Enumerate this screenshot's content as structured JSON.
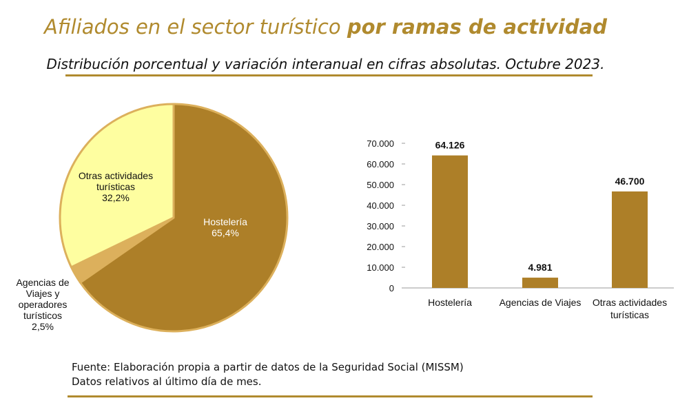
{
  "header": {
    "title_regular": "Afiliados en el sector turístico ",
    "title_bold": "por ramas de actividad",
    "subtitle": "Distribución porcentual y variación interanual en cifras absolutas. Octubre 2023."
  },
  "footer": {
    "source": "Fuente: Elaboración propia a partir de datos de la Seguridad Social (MISSM)",
    "note": "Datos relativos al último día de mes."
  },
  "colors": {
    "accent": "#b08a2e",
    "pie_hosteleria": "#ad7f28",
    "pie_agencias": "#dcb05c",
    "pie_otras": "#fefea0",
    "bar": "#ad7f28"
  },
  "chart_data": [
    {
      "type": "pie",
      "slices": [
        {
          "label_lines": [
            "Hostelería",
            "65,4%"
          ],
          "value": 65.4,
          "color": "#ad7f28"
        },
        {
          "label_lines": [
            "Agencias de",
            "Viajes y",
            "operadores",
            "turísticos",
            "2,5%"
          ],
          "value": 2.5,
          "color": "#dcb05c"
        },
        {
          "label_lines": [
            "Otras actividades",
            "turísticas",
            "32,2%"
          ],
          "value": 32.2,
          "color": "#fefea0"
        }
      ]
    },
    {
      "type": "bar",
      "categories": [
        [
          "Hostelería"
        ],
        [
          "Agencias de Viajes"
        ],
        [
          "Otras actividades",
          "turísticas"
        ]
      ],
      "values": [
        64126,
        4981,
        46700
      ],
      "data_labels": [
        "64.126",
        "4.981",
        "46.700"
      ],
      "ylim": [
        0,
        70000
      ],
      "yticks": [
        0,
        10000,
        20000,
        30000,
        40000,
        50000,
        60000,
        70000
      ],
      "ytick_labels": [
        "0",
        "10.000",
        "20.000",
        "30.000",
        "40.000",
        "50.000",
        "60.000",
        "70.000"
      ],
      "grid": false,
      "legend": "none"
    }
  ]
}
